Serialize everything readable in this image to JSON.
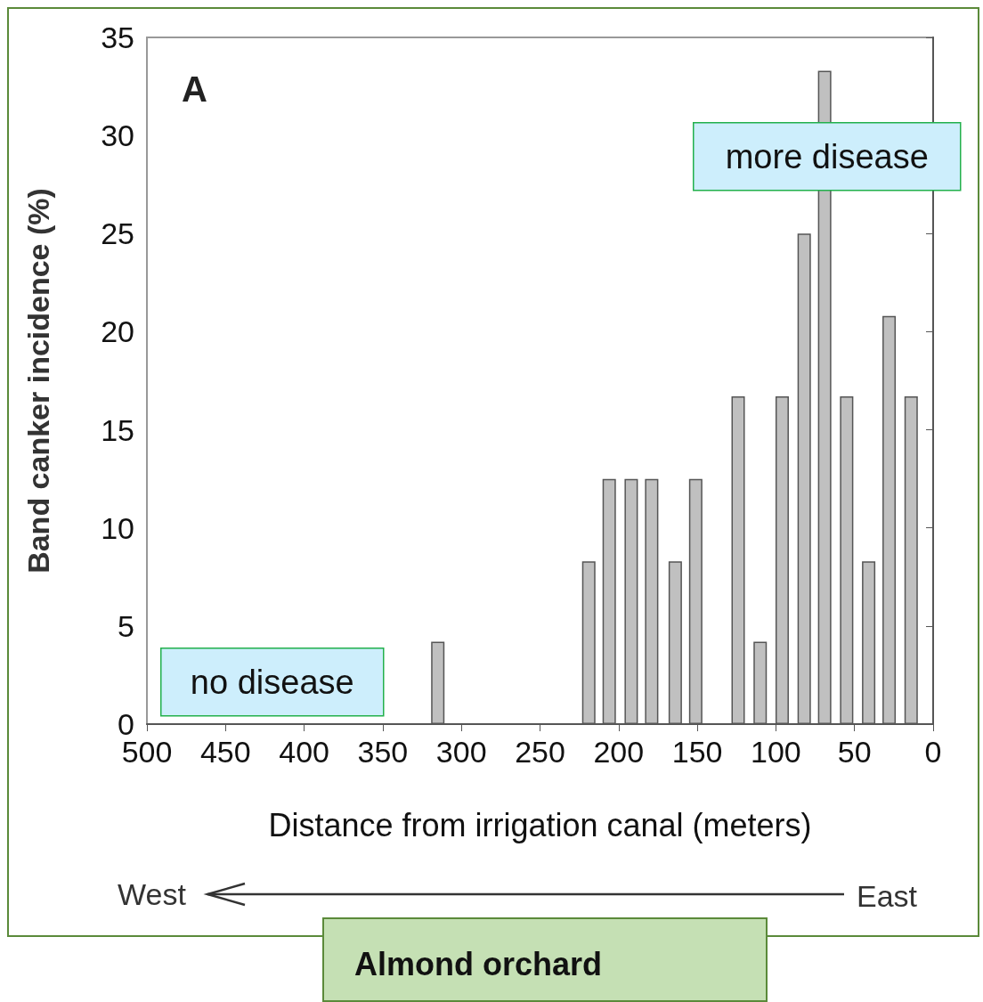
{
  "chart_data": {
    "type": "bar",
    "xlabel": "Distance from irrigation canal (meters)",
    "ylabel": "Band canker incidence (%)",
    "x": [
      315,
      219,
      206,
      192,
      179,
      164,
      151,
      124,
      110,
      96,
      82,
      69,
      55,
      41,
      28,
      14
    ],
    "values": [
      4.2,
      8.3,
      12.5,
      12.5,
      12.5,
      8.3,
      12.5,
      16.7,
      4.2,
      16.7,
      25,
      33.3,
      16.7,
      8.3,
      20.8,
      16.7
    ],
    "color": "#c0c0c0",
    "xlim": [
      500,
      0
    ],
    "xticks": [
      500,
      450,
      400,
      350,
      300,
      250,
      200,
      150,
      100,
      50,
      0
    ],
    "ylim": [
      0,
      35
    ],
    "yticks": [
      0,
      5,
      10,
      15,
      20,
      25,
      30,
      35
    ],
    "annotations": [
      "A",
      "more disease",
      "no disease",
      "West",
      "East",
      "Almond orchard"
    ]
  }
}
